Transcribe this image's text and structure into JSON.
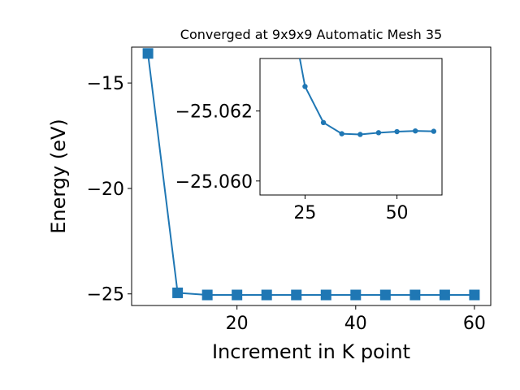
{
  "chart_data": [
    {
      "type": "line",
      "title": "Converged at 9x9x9 Automatic Mesh 35",
      "xlabel": "Increment in K point",
      "ylabel": "Energy (eV)",
      "xlim": [
        2.25,
        62.75
      ],
      "ylim": [
        -25.55,
        -13.3
      ],
      "xticks": [
        20,
        40,
        60
      ],
      "xtick_labels": [
        "20",
        "40",
        "60"
      ],
      "yticks": [
        -15,
        -20,
        -25
      ],
      "ytick_labels": [
        "−15",
        "−20",
        "−25"
      ],
      "grid": false,
      "color": "#1f77b4",
      "marker": "square",
      "series": [
        {
          "x": [
            5,
            10,
            15,
            20,
            25,
            30,
            35,
            40,
            45,
            50,
            55,
            60
          ],
          "y": [
            -13.6,
            -24.95,
            -25.05,
            -25.05,
            -25.05,
            -25.05,
            -25.05,
            -25.05,
            -25.05,
            -25.05,
            -25.05,
            -25.05
          ]
        }
      ]
    },
    {
      "type": "line",
      "title": "",
      "xlabel": "",
      "ylabel": "",
      "xlim": [
        12.75,
        62.25
      ],
      "ylim": [
        -25.0596,
        -25.0635
      ],
      "xticks": [
        25,
        50
      ],
      "xtick_labels": [
        "25",
        "50"
      ],
      "yticks": [
        -25.062,
        -25.06
      ],
      "ytick_labels": [
        "−25.062",
        "−25.060"
      ],
      "grid": false,
      "color": "#1f77b4",
      "marker": "circle",
      "series": [
        {
          "x": [
            20,
            25,
            30,
            35,
            40,
            45,
            50,
            55,
            60
          ],
          "y": [
            -25.0655,
            -25.0627,
            -25.06167,
            -25.06135,
            -25.06133,
            -25.06138,
            -25.06141,
            -25.06143,
            -25.06142
          ]
        }
      ]
    }
  ]
}
